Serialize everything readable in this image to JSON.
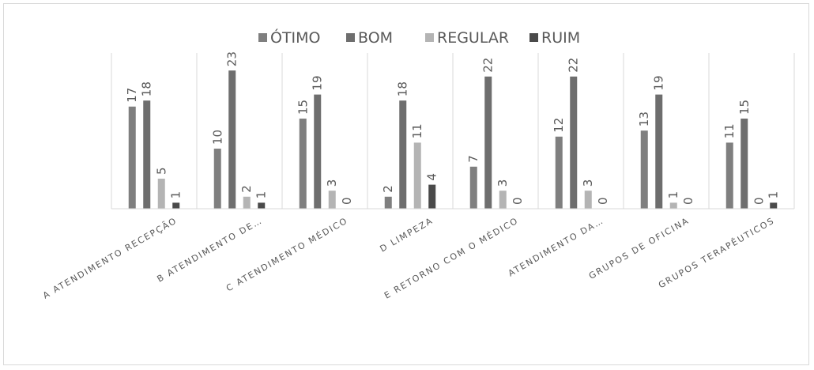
{
  "chart_data": {
    "type": "bar",
    "title": "",
    "xlabel": "",
    "ylabel": "",
    "legend_position": "top",
    "gridlines": "vertical-category-separators",
    "ylim": [
      0,
      25
    ],
    "categories": [
      "A ATENDIMENTO RECEPÇÃO",
      "B ATENDIMENTO DE…",
      "C ATENDIMENTO MÉDICO",
      "D LIMPEZA",
      "E RETORNO COM O MÉDICO",
      "ATENDIMENTO DA…",
      "GRUPOS DE OFICINA",
      "GRUPOS TERAPÊUTICOS"
    ],
    "series": [
      {
        "name": "ÓTIMO",
        "color": "#7f7f7f",
        "values": [
          17,
          10,
          15,
          2,
          7,
          12,
          13,
          11
        ]
      },
      {
        "name": "BOM",
        "color": "#6e6e6e",
        "values": [
          18,
          23,
          19,
          18,
          22,
          22,
          19,
          15
        ]
      },
      {
        "name": "REGULAR",
        "color": "#b4b4b4",
        "values": [
          5,
          2,
          3,
          11,
          3,
          3,
          1,
          0
        ]
      },
      {
        "name": "RUIM",
        "color": "#4a4a4a",
        "values": [
          1,
          1,
          0,
          4,
          0,
          0,
          0,
          1
        ]
      }
    ]
  }
}
